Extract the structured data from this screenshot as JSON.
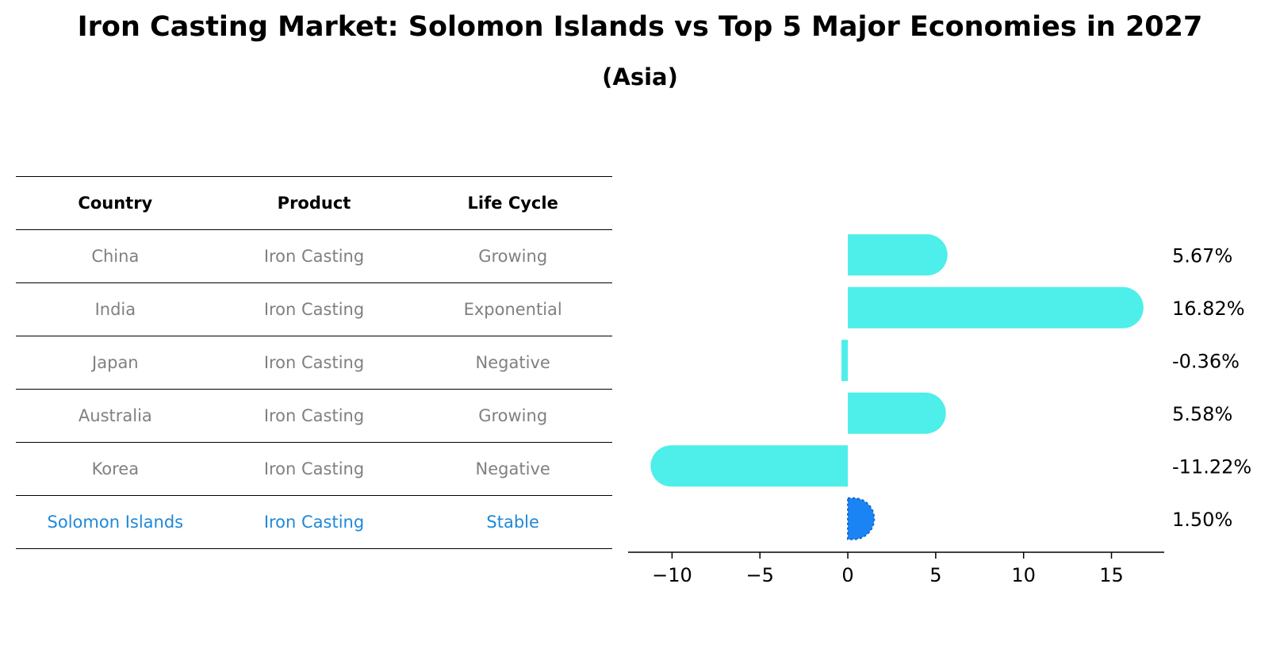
{
  "title": "Iron Casting Market: Solomon Islands vs Top 5 Major Economies in 2027",
  "subtitle": "(Asia)",
  "table": {
    "headers": [
      "Country",
      "Product",
      "Life Cycle"
    ],
    "rows": [
      {
        "country": "China",
        "product": "Iron Casting",
        "life_cycle": "Growing"
      },
      {
        "country": "India",
        "product": "Iron Casting",
        "life_cycle": "Exponential"
      },
      {
        "country": "Japan",
        "product": "Iron Casting",
        "life_cycle": "Negative"
      },
      {
        "country": "Australia",
        "product": "Iron Casting",
        "life_cycle": "Growing"
      },
      {
        "country": "Korea",
        "product": "Iron Casting",
        "life_cycle": "Negative"
      },
      {
        "country": "Solomon Islands",
        "product": "Iron Casting",
        "life_cycle": "Stable"
      }
    ],
    "highlight_index": 5
  },
  "chart_data": {
    "type": "bar",
    "orientation": "horizontal",
    "categories": [
      "China",
      "India",
      "Japan",
      "Australia",
      "Korea",
      "Solomon Islands"
    ],
    "values": [
      5.67,
      16.82,
      -0.36,
      5.58,
      -11.22,
      1.5
    ],
    "value_labels": [
      "5.67%",
      "16.82%",
      "-0.36%",
      "5.58%",
      "-11.22%",
      "1.50%"
    ],
    "xlim": [
      -12.5,
      18
    ],
    "xticks": [
      -10,
      -5,
      0,
      5,
      10,
      15
    ],
    "xtick_labels": [
      "−10",
      "−5",
      "0",
      "5",
      "10",
      "15"
    ],
    "grid": false,
    "colors": {
      "bar": "#4eeeea",
      "highlight": "#1a84f4",
      "highlight_text": "#1f88d8",
      "muted_text": "#808080"
    }
  }
}
